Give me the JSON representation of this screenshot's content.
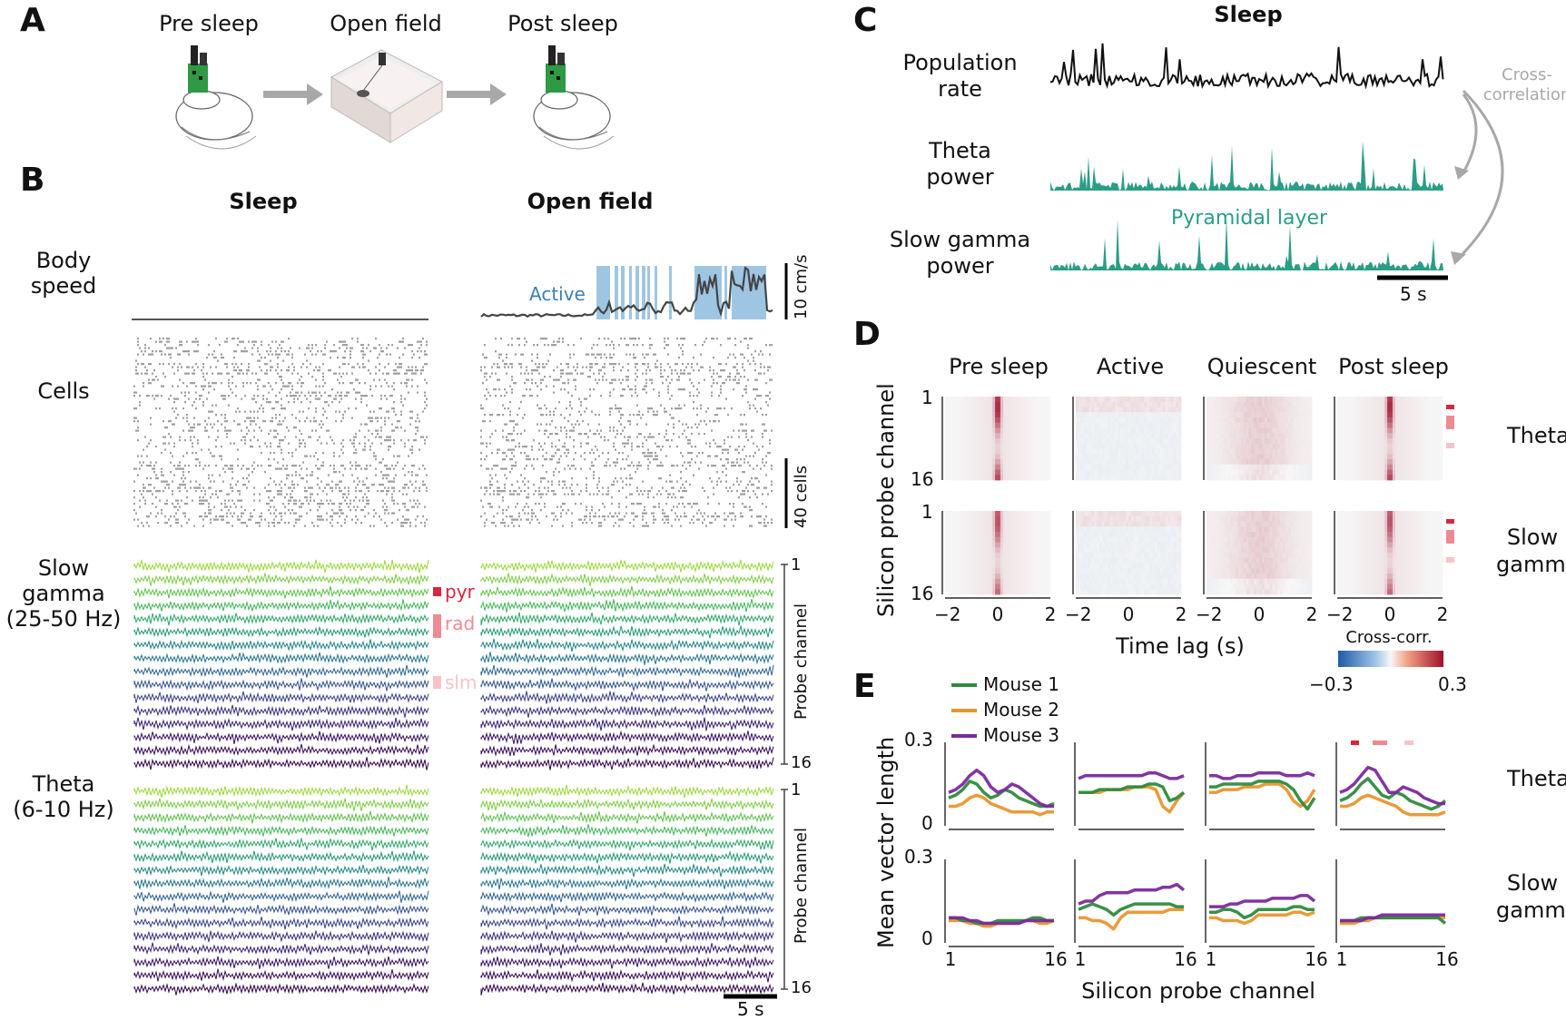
{
  "panels": {
    "a": {
      "label": "A",
      "stages": [
        "Pre sleep",
        "Open field",
        "Post sleep"
      ]
    },
    "b": {
      "label": "B",
      "col_sleep": "Sleep",
      "col_open": "Open field",
      "row_body_speed": [
        "Body",
        "speed"
      ],
      "active_label": "Active",
      "speed_scale": "10 cm/s",
      "row_cells": "Cells",
      "cells_scale": "40 cells",
      "row_slow_gamma": [
        "Slow",
        "gamma",
        "(25-50 Hz)"
      ],
      "row_theta": [
        "Theta",
        "(6-10 Hz)"
      ],
      "layers": [
        "pyr",
        "rad",
        "slm"
      ],
      "probe_axis": "Probe channel",
      "probe_top": "1",
      "probe_bottom": "16",
      "time_scale": "5 s"
    },
    "c": {
      "label": "C",
      "title": "Sleep",
      "rows": [
        [
          "Population",
          "rate"
        ],
        [
          "Theta",
          "power"
        ],
        [
          "Slow gamma",
          "power"
        ]
      ],
      "xcorr_label": [
        "Cross-",
        "correlation"
      ],
      "annotation": "Pyramidal layer",
      "time_scale": "5 s"
    },
    "d": {
      "label": "D",
      "columns": [
        "Pre sleep",
        "Active",
        "Quiescent",
        "Post sleep"
      ],
      "rows": [
        [
          "Theta"
        ],
        [
          "Slow",
          "gamma"
        ]
      ],
      "ylabel": "Silicon probe channel",
      "ytick_top": "1",
      "ytick_bottom": "16",
      "xticks": [
        "−2",
        "0",
        "2"
      ],
      "xlabel": "Time lag (s)",
      "colorbar_label": "Cross-corr.",
      "colorbar_min": "−0.3",
      "colorbar_max": "0.3"
    },
    "e": {
      "label": "E",
      "legend": [
        "Mouse 1",
        "Mouse 2",
        "Mouse 3"
      ],
      "ylabel": "Mean vector length",
      "yticks": [
        "0.3",
        "0"
      ],
      "xticks": [
        "1",
        "16"
      ],
      "xlabel": "Silicon probe channel",
      "rows": [
        [
          "Theta"
        ],
        [
          "Slow",
          "gamma"
        ]
      ]
    }
  },
  "colors": {
    "active_fill": "#9ec6e3",
    "active_text": "#3a7fb8",
    "teal": "#2a9d86",
    "pyr": "#d7263d",
    "rad": "#ee8a91",
    "slm": "#f6c3c7",
    "mouse1": "#2e8b3d",
    "mouse2": "#e8962e",
    "mouse3": "#7b2a9e",
    "arrow_gray": "#a8a8a8"
  },
  "chart_data": [
    {
      "type": "line",
      "panel": "E",
      "row": "Theta",
      "column": "Pre sleep",
      "x": [
        1,
        2,
        3,
        4,
        5,
        6,
        7,
        8,
        9,
        10,
        11,
        12,
        13,
        14,
        15,
        16
      ],
      "series": [
        {
          "name": "Mouse 1",
          "values": [
            0.1,
            0.11,
            0.13,
            0.16,
            0.15,
            0.12,
            0.1,
            0.11,
            0.13,
            0.12,
            0.1,
            0.09,
            0.08,
            0.07,
            0.07,
            0.08
          ]
        },
        {
          "name": "Mouse 2",
          "values": [
            0.07,
            0.07,
            0.08,
            0.1,
            0.11,
            0.1,
            0.08,
            0.07,
            0.06,
            0.05,
            0.05,
            0.05,
            0.05,
            0.04,
            0.05,
            0.05
          ]
        },
        {
          "name": "Mouse 3",
          "values": [
            0.12,
            0.13,
            0.15,
            0.18,
            0.2,
            0.18,
            0.14,
            0.12,
            0.13,
            0.15,
            0.14,
            0.12,
            0.1,
            0.08,
            0.07,
            0.07
          ]
        }
      ],
      "ylim": [
        0,
        0.3
      ]
    },
    {
      "type": "line",
      "panel": "E",
      "row": "Theta",
      "column": "Active",
      "x": [
        1,
        2,
        3,
        4,
        5,
        6,
        7,
        8,
        9,
        10,
        11,
        12,
        13,
        14,
        15,
        16
      ],
      "series": [
        {
          "name": "Mouse 1",
          "values": [
            0.12,
            0.12,
            0.12,
            0.13,
            0.13,
            0.13,
            0.13,
            0.14,
            0.14,
            0.14,
            0.15,
            0.15,
            0.14,
            0.09,
            0.1,
            0.12
          ]
        },
        {
          "name": "Mouse 2",
          "values": [
            0.12,
            0.12,
            0.12,
            0.12,
            0.13,
            0.13,
            0.13,
            0.13,
            0.14,
            0.14,
            0.14,
            0.13,
            0.07,
            0.05,
            0.09,
            0.12
          ]
        },
        {
          "name": "Mouse 3",
          "values": [
            0.17,
            0.18,
            0.18,
            0.18,
            0.18,
            0.18,
            0.18,
            0.18,
            0.18,
            0.18,
            0.19,
            0.19,
            0.18,
            0.17,
            0.17,
            0.18
          ]
        }
      ],
      "ylim": [
        0,
        0.3
      ]
    },
    {
      "type": "line",
      "panel": "E",
      "row": "Theta",
      "column": "Quiescent",
      "x": [
        1,
        2,
        3,
        4,
        5,
        6,
        7,
        8,
        9,
        10,
        11,
        12,
        13,
        14,
        15,
        16
      ],
      "series": [
        {
          "name": "Mouse 1",
          "values": [
            0.14,
            0.14,
            0.15,
            0.15,
            0.15,
            0.15,
            0.15,
            0.16,
            0.16,
            0.16,
            0.16,
            0.15,
            0.13,
            0.09,
            0.06,
            0.1
          ]
        },
        {
          "name": "Mouse 2",
          "values": [
            0.12,
            0.12,
            0.13,
            0.13,
            0.13,
            0.14,
            0.14,
            0.14,
            0.15,
            0.15,
            0.15,
            0.13,
            0.09,
            0.07,
            0.09,
            0.13
          ]
        },
        {
          "name": "Mouse 3",
          "values": [
            0.18,
            0.18,
            0.17,
            0.17,
            0.18,
            0.18,
            0.18,
            0.19,
            0.19,
            0.19,
            0.19,
            0.18,
            0.18,
            0.18,
            0.19,
            0.18
          ]
        }
      ],
      "ylim": [
        0,
        0.3
      ]
    },
    {
      "type": "line",
      "panel": "E",
      "row": "Theta",
      "column": "Post sleep",
      "x": [
        1,
        2,
        3,
        4,
        5,
        6,
        7,
        8,
        9,
        10,
        11,
        12,
        13,
        14,
        15,
        16
      ],
      "series": [
        {
          "name": "Mouse 1",
          "values": [
            0.09,
            0.1,
            0.12,
            0.15,
            0.17,
            0.14,
            0.11,
            0.1,
            0.12,
            0.11,
            0.09,
            0.08,
            0.07,
            0.06,
            0.07,
            0.09
          ]
        },
        {
          "name": "Mouse 2",
          "values": [
            0.07,
            0.07,
            0.08,
            0.1,
            0.11,
            0.1,
            0.09,
            0.08,
            0.07,
            0.05,
            0.04,
            0.04,
            0.04,
            0.04,
            0.04,
            0.05
          ]
        },
        {
          "name": "Mouse 3",
          "values": [
            0.12,
            0.13,
            0.15,
            0.18,
            0.21,
            0.2,
            0.16,
            0.12,
            0.12,
            0.14,
            0.13,
            0.12,
            0.1,
            0.09,
            0.08,
            0.08
          ]
        }
      ],
      "ylim": [
        0,
        0.3
      ]
    },
    {
      "type": "line",
      "panel": "E",
      "row": "Slow gamma",
      "column": "Pre sleep",
      "x": [
        1,
        2,
        3,
        4,
        5,
        6,
        7,
        8,
        9,
        10,
        11,
        12,
        13,
        14,
        15,
        16
      ],
      "series": [
        {
          "name": "Mouse 1",
          "values": [
            0.09,
            0.09,
            0.08,
            0.08,
            0.07,
            0.07,
            0.07,
            0.08,
            0.08,
            0.08,
            0.08,
            0.08,
            0.09,
            0.09,
            0.08,
            0.08
          ]
        },
        {
          "name": "Mouse 2",
          "values": [
            0.08,
            0.08,
            0.08,
            0.07,
            0.07,
            0.06,
            0.06,
            0.07,
            0.07,
            0.07,
            0.07,
            0.08,
            0.08,
            0.07,
            0.07,
            0.08
          ]
        },
        {
          "name": "Mouse 3",
          "values": [
            0.09,
            0.09,
            0.09,
            0.08,
            0.08,
            0.07,
            0.07,
            0.07,
            0.07,
            0.07,
            0.07,
            0.08,
            0.08,
            0.08,
            0.08,
            0.08
          ]
        }
      ],
      "ylim": [
        0,
        0.3
      ]
    },
    {
      "type": "line",
      "panel": "E",
      "row": "Slow gamma",
      "column": "Active",
      "x": [
        1,
        2,
        3,
        4,
        5,
        6,
        7,
        8,
        9,
        10,
        11,
        12,
        13,
        14,
        15,
        16
      ],
      "series": [
        {
          "name": "Mouse 1",
          "values": [
            0.12,
            0.13,
            0.14,
            0.13,
            0.12,
            0.1,
            0.12,
            0.13,
            0.14,
            0.14,
            0.14,
            0.14,
            0.14,
            0.14,
            0.13,
            0.13
          ]
        },
        {
          "name": "Mouse 2",
          "values": [
            0.09,
            0.09,
            0.08,
            0.08,
            0.07,
            0.05,
            0.09,
            0.11,
            0.11,
            0.11,
            0.11,
            0.11,
            0.11,
            0.12,
            0.12,
            0.12
          ]
        },
        {
          "name": "Mouse 3",
          "values": [
            0.14,
            0.15,
            0.15,
            0.17,
            0.18,
            0.18,
            0.18,
            0.18,
            0.19,
            0.19,
            0.19,
            0.19,
            0.2,
            0.2,
            0.21,
            0.19
          ]
        }
      ],
      "ylim": [
        0,
        0.3
      ]
    },
    {
      "type": "line",
      "panel": "E",
      "row": "Slow gamma",
      "column": "Quiescent",
      "x": [
        1,
        2,
        3,
        4,
        5,
        6,
        7,
        8,
        9,
        10,
        11,
        12,
        13,
        14,
        15,
        16
      ],
      "series": [
        {
          "name": "Mouse 1",
          "values": [
            0.11,
            0.11,
            0.12,
            0.12,
            0.11,
            0.09,
            0.1,
            0.12,
            0.12,
            0.12,
            0.12,
            0.12,
            0.13,
            0.13,
            0.12,
            0.12
          ]
        },
        {
          "name": "Mouse 2",
          "values": [
            0.09,
            0.09,
            0.08,
            0.08,
            0.08,
            0.07,
            0.08,
            0.1,
            0.1,
            0.1,
            0.1,
            0.1,
            0.11,
            0.11,
            0.1,
            0.11
          ]
        },
        {
          "name": "Mouse 3",
          "values": [
            0.13,
            0.13,
            0.13,
            0.14,
            0.14,
            0.15,
            0.15,
            0.15,
            0.15,
            0.16,
            0.16,
            0.16,
            0.16,
            0.17,
            0.17,
            0.15
          ]
        }
      ],
      "ylim": [
        0,
        0.3
      ]
    },
    {
      "type": "line",
      "panel": "E",
      "row": "Slow gamma",
      "column": "Post sleep",
      "x": [
        1,
        2,
        3,
        4,
        5,
        6,
        7,
        8,
        9,
        10,
        11,
        12,
        13,
        14,
        15,
        16
      ],
      "series": [
        {
          "name": "Mouse 1",
          "values": [
            0.08,
            0.08,
            0.08,
            0.09,
            0.09,
            0.09,
            0.09,
            0.09,
            0.09,
            0.09,
            0.09,
            0.09,
            0.09,
            0.09,
            0.09,
            0.07
          ]
        },
        {
          "name": "Mouse 2",
          "values": [
            0.07,
            0.07,
            0.07,
            0.08,
            0.08,
            0.09,
            0.09,
            0.09,
            0.09,
            0.09,
            0.09,
            0.09,
            0.09,
            0.09,
            0.09,
            0.09
          ]
        },
        {
          "name": "Mouse 3",
          "values": [
            0.08,
            0.08,
            0.08,
            0.08,
            0.09,
            0.09,
            0.1,
            0.1,
            0.1,
            0.1,
            0.1,
            0.1,
            0.1,
            0.1,
            0.1,
            0.1
          ]
        }
      ],
      "ylim": [
        0,
        0.3
      ]
    }
  ]
}
